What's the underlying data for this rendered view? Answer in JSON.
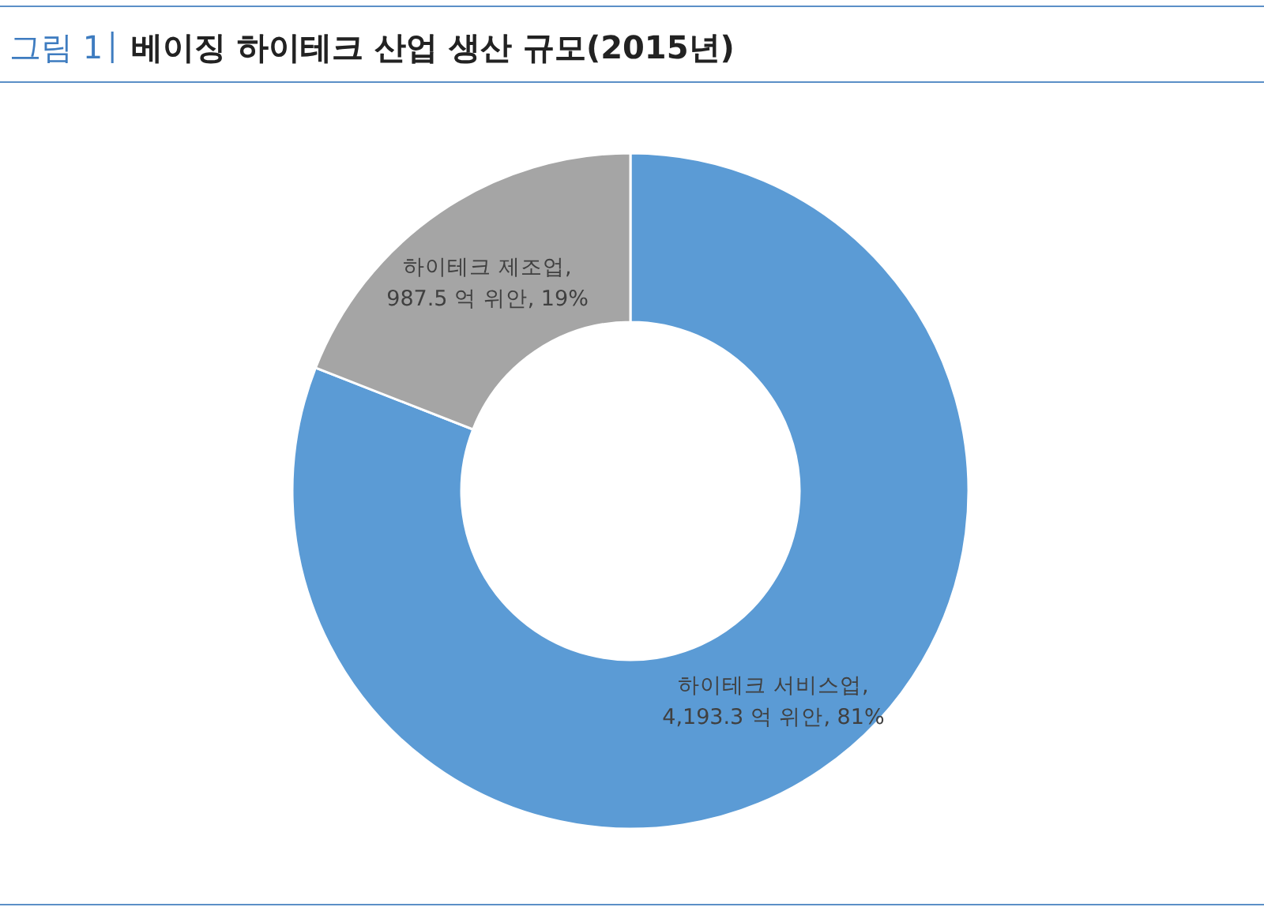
{
  "chart_data": {
    "type": "donut",
    "title": "베이징 하이테크 산업 생산 규모(2015년)",
    "annotations": [
      "그림 1"
    ],
    "categories": [
      "하이테크 서비스업",
      "하이테크 제조업"
    ],
    "values": [
      4193.3,
      987.5
    ],
    "colors": [
      "#5b9bd5",
      "#a5a5a5"
    ],
    "value_labels": [
      ",\n4,193.3 억 위안, 81%",
      ",\n987.5 억 위안, 19%"
    ],
    "legend": false
  }
}
